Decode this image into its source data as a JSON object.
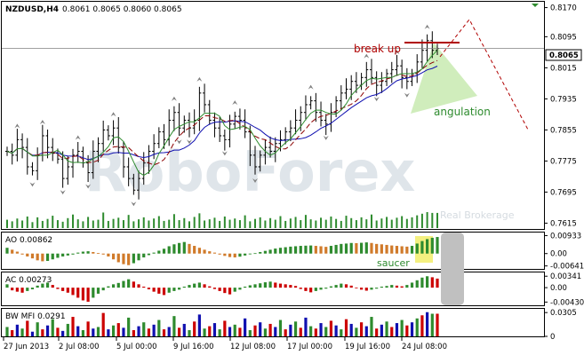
{
  "header": {
    "symbol": "NZDUSD,H4",
    "ohlc": "0.8061 0.8065 0.8060 0.8065"
  },
  "current_price": "0.8065",
  "watermark": "RoboForex",
  "watermark_sub": "Real Brokerage",
  "annotations": {
    "break_up": "break up",
    "angulation": "angulation",
    "saucer": "saucer"
  },
  "colors": {
    "bars": "#000000",
    "ma_red": "#8b0000",
    "ma_green": "#2e8b2e",
    "ma_blue": "#1010b0",
    "volume": "#2e8b2e",
    "up": "#2e8b2e",
    "down": "#cc0000",
    "ao_down": "#d07a2a",
    "highlight": "#f4f080",
    "triangle": "#c8eab0",
    "break_line": "#b00000",
    "angulation_text": "#2e8b2e",
    "mfi_blue": "#1010b0",
    "mfi_pink": "#e07070",
    "gray_block": "#c0c0c0"
  },
  "chart_data": [
    {
      "type": "candlestick",
      "title": "NZDUSD,H4",
      "y_ticks": [
        "0.8170",
        "0.8095",
        "0.8015",
        "0.7935",
        "0.7855",
        "0.7775",
        "0.7695",
        "0.7615"
      ],
      "ylim": [
        0.76,
        0.8185
      ],
      "x_ticks": [
        "27 Jun 2013",
        "2 Jul 08:00",
        "5 Jul 00:00",
        "9 Jul 16:00",
        "12 Jul 08:00",
        "17 Jul 00:00",
        "19 Jul 16:00",
        "24 Jul 08:00"
      ],
      "last_close": 0.8065,
      "closes": [
        0.78,
        0.779,
        0.783,
        0.781,
        0.776,
        0.775,
        0.779,
        0.784,
        0.781,
        0.7795,
        0.778,
        0.773,
        0.776,
        0.779,
        0.78,
        0.777,
        0.7745,
        0.78,
        0.782,
        0.7855,
        0.784,
        0.786,
        0.781,
        0.776,
        0.773,
        0.77,
        0.773,
        0.777,
        0.78,
        0.782,
        0.785,
        0.783,
        0.788,
        0.79,
        0.786,
        0.788,
        0.786,
        0.788,
        0.795,
        0.792,
        0.788,
        0.786,
        0.784,
        0.783,
        0.787,
        0.789,
        0.788,
        0.785,
        0.779,
        0.776,
        0.779,
        0.781,
        0.78,
        0.782,
        0.783,
        0.785,
        0.786,
        0.788,
        0.79,
        0.792,
        0.793,
        0.79,
        0.788,
        0.787,
        0.79,
        0.793,
        0.795,
        0.796,
        0.798,
        0.797,
        0.799,
        0.801,
        0.799,
        0.797,
        0.798,
        0.8,
        0.801,
        0.802,
        0.799,
        0.798,
        0.8,
        0.803,
        0.806,
        0.8085,
        0.806,
        0.8065
      ]
    },
    {
      "type": "bar",
      "title": "AO 0.00862",
      "y_ticks": [
        "0.00933",
        "0.00",
        "-0.00641"
      ],
      "ylim": [
        -0.0075,
        0.01
      ],
      "values": [
        0.003,
        0.002,
        0.001,
        -0.0005,
        -0.0015,
        -0.0025,
        -0.0035,
        -0.004,
        -0.0038,
        -0.003,
        -0.0022,
        -0.0015,
        -0.001,
        -0.0005,
        0.0005,
        0.001,
        0.0012,
        0.0008,
        0.0003,
        -0.0005,
        -0.0015,
        -0.003,
        -0.0045,
        -0.0055,
        -0.006,
        -0.005,
        -0.0035,
        -0.002,
        -0.0008,
        0.0005,
        0.0015,
        0.0025,
        0.0038,
        0.0048,
        0.0055,
        0.006,
        0.005,
        0.004,
        0.003,
        0.002,
        0.0012,
        0.0005,
        -0.0005,
        -0.0012,
        -0.0018,
        -0.002,
        -0.0016,
        -0.001,
        -0.0004,
        0.0002,
        0.0008,
        0.0014,
        0.002,
        0.0026,
        0.003,
        0.0033,
        0.0036,
        0.0038,
        0.004,
        0.0041,
        0.0042,
        0.004,
        0.0038,
        0.0035,
        0.004,
        0.0045,
        0.005,
        0.0052,
        0.0055,
        0.0054,
        0.0056,
        0.0058,
        0.0055,
        0.005,
        0.0048,
        0.0045,
        0.0042,
        0.004,
        0.0038,
        0.0036,
        0.004,
        0.0052,
        0.0065,
        0.0075,
        0.0082,
        0.0086
      ]
    },
    {
      "type": "bar",
      "title": "AC 0.00273",
      "y_ticks": [
        "0.00341",
        "0.00",
        "-0.00430"
      ],
      "ylim": [
        -0.005,
        0.004
      ],
      "values": [
        0.001,
        -0.0008,
        -0.0012,
        -0.0015,
        -0.001,
        -0.0005,
        0.0006,
        0.0012,
        0.0015,
        0.0008,
        -0.0004,
        -0.001,
        -0.0015,
        -0.0022,
        -0.003,
        -0.0038,
        -0.0042,
        -0.003,
        -0.0018,
        -0.0008,
        0.0004,
        0.001,
        0.0014,
        0.002,
        0.0025,
        0.0018,
        0.001,
        0.0003,
        -0.0005,
        -0.0012,
        -0.0018,
        -0.0022,
        -0.0015,
        -0.001,
        -0.0006,
        0.0003,
        0.0008,
        0.0012,
        0.0015,
        0.001,
        0.0004,
        -0.0004,
        -0.001,
        -0.0016,
        -0.002,
        -0.0012,
        -0.0006,
        0.0003,
        0.0007,
        0.001,
        0.0013,
        0.0016,
        0.0018,
        0.0015,
        0.0012,
        0.001,
        0.0008,
        0.0005,
        -0.0004,
        -0.001,
        -0.0014,
        -0.001,
        -0.0006,
        -0.0003,
        0.0004,
        0.0008,
        0.0012,
        0.001,
        0.0006,
        -0.0002,
        -0.0006,
        -0.0009,
        -0.0006,
        -0.0003,
        0.0003,
        0.0005,
        0.0008,
        0.0006,
        0.0004,
        0.0008,
        0.0015,
        0.0022,
        0.003,
        0.0034,
        0.0031,
        0.0027
      ]
    },
    {
      "type": "bar",
      "title": "BW MFI 0.0291",
      "y_ticks": [
        "0.0305",
        "0"
      ],
      "ylim": [
        0,
        0.033
      ],
      "values": [
        0.012,
        0.008,
        0.015,
        0.01,
        0.02,
        0.006,
        0.018,
        0.009,
        0.014,
        0.022,
        0.011,
        0.007,
        0.016,
        0.025,
        0.013,
        0.008,
        0.019,
        0.01,
        0.012,
        0.03,
        0.009,
        0.014,
        0.017,
        0.011,
        0.024,
        0.008,
        0.013,
        0.018,
        0.01,
        0.015,
        0.021,
        0.009,
        0.012,
        0.026,
        0.011,
        0.016,
        0.008,
        0.019,
        0.028,
        0.01,
        0.013,
        0.017,
        0.009,
        0.02,
        0.012,
        0.015,
        0.011,
        0.023,
        0.008,
        0.014,
        0.018,
        0.01,
        0.016,
        0.012,
        0.021,
        0.009,
        0.015,
        0.019,
        0.011,
        0.024,
        0.013,
        0.01,
        0.017,
        0.012,
        0.02,
        0.014,
        0.009,
        0.022,
        0.016,
        0.011,
        0.018,
        0.013,
        0.025,
        0.01,
        0.015,
        0.019,
        0.012,
        0.017,
        0.021,
        0.014,
        0.018,
        0.023,
        0.027,
        0.031,
        0.029,
        0.029
      ]
    }
  ]
}
